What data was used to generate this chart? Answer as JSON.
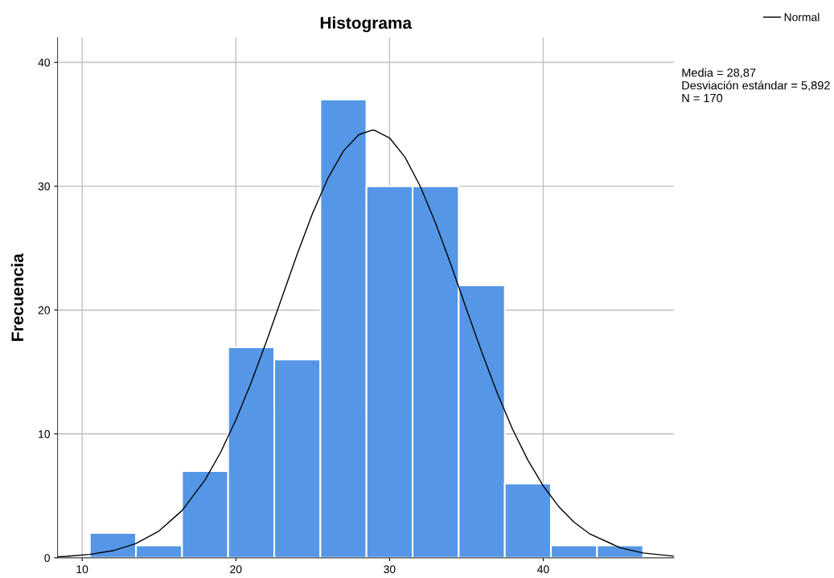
{
  "chart_data": {
    "type": "histogram",
    "title": "Histograma",
    "ylabel": "Frecuencia",
    "bins": [
      10.5,
      13.5,
      16.5,
      19.5,
      22.5,
      25.5,
      28.5,
      31.5,
      34.5,
      37.5,
      40.5,
      43.5,
      46.5
    ],
    "values": [
      2,
      1,
      7,
      17,
      16,
      37,
      30,
      30,
      22,
      6,
      1,
      1
    ],
    "color": "#5596e6",
    "series": [
      {
        "type": "line",
        "name": "Normal",
        "color": "#000000",
        "x": [
          8.4,
          9,
          10.5,
          12,
          13.5,
          15,
          16.5,
          18,
          19,
          20,
          21,
          22,
          23,
          24,
          25,
          26,
          27,
          28,
          28.87,
          29,
          30,
          31,
          32,
          33,
          34,
          35,
          36,
          37,
          38,
          39,
          40,
          41,
          42,
          43,
          45,
          46.5,
          48.5
        ],
        "values": [
          0.08,
          0.12,
          0.27,
          0.57,
          1.15,
          2.16,
          3.81,
          6.29,
          8.49,
          11.12,
          14.15,
          17.49,
          21.02,
          24.54,
          27.83,
          30.67,
          32.84,
          34.16,
          34.53,
          34.52,
          33.9,
          32.35,
          29.99,
          27.01,
          23.64,
          20.1,
          16.61,
          13.33,
          10.39,
          7.88,
          5.8,
          4.15,
          2.88,
          1.95,
          0.81,
          0.39,
          0.13
        ]
      }
    ],
    "annotations": [
      "Media = 28,87",
      "Desviación estándar = 5,892",
      "N = 170"
    ],
    "xlim": [
      8.4,
      48.5
    ],
    "ylim": [
      0,
      42
    ],
    "xticks": [
      10,
      20,
      30,
      40
    ],
    "yticks": [
      0,
      10,
      20,
      30,
      40
    ],
    "grid": true,
    "legend": "top right",
    "marker": "none",
    "line_style": "solid"
  }
}
